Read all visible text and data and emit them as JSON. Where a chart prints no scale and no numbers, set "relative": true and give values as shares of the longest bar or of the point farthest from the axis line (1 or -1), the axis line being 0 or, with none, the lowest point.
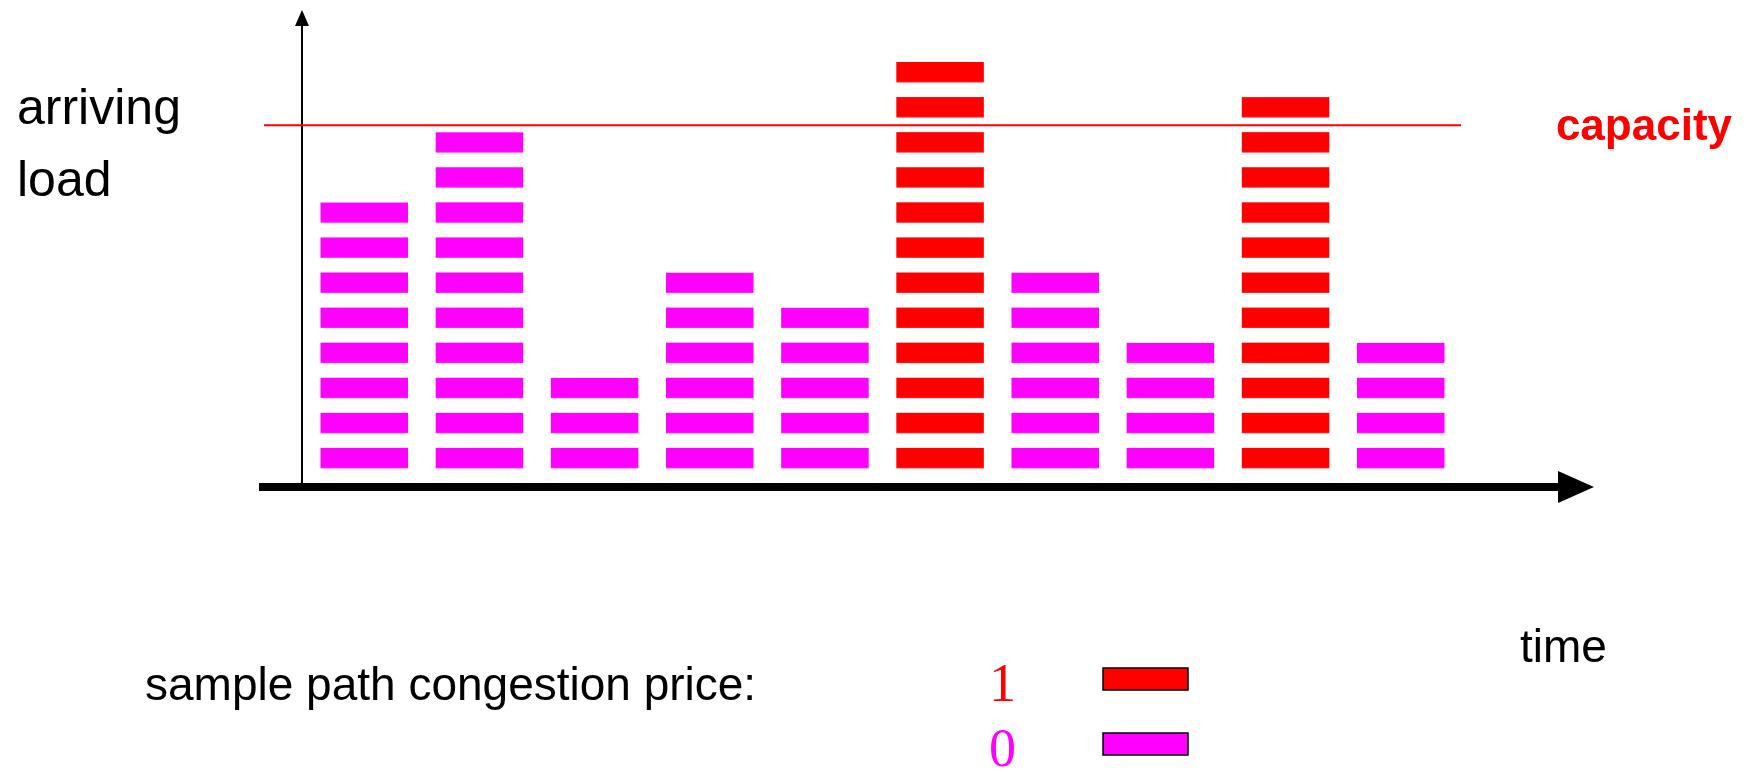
{
  "chart_data": {
    "type": "bar",
    "relative": true,
    "xlabel": "time",
    "ylabel": "arriving load",
    "legend_title": "sample path congestion price:",
    "categories": [
      null,
      null,
      null,
      null,
      null,
      null,
      null,
      null,
      null,
      null
    ],
    "values": [
      0.6667,
      0.8333,
      0.25,
      0.5,
      0.4167,
      1,
      0.5,
      0.3333,
      0.9167,
      0.3333
    ],
    "colors": [
      "#ff00ff",
      "#ff00ff",
      "#ff00ff",
      "#ff00ff",
      "#ff00ff",
      "#ff0000",
      "#ff00ff",
      "#ff00ff",
      "#ff0000",
      "#ff00ff"
    ],
    "annotations": [
      "1",
      "0"
    ],
    "ref_lines": [
      {
        "axis": "y",
        "value": 0.85,
        "label": "capacity",
        "color": "#ff0000"
      }
    ]
  }
}
